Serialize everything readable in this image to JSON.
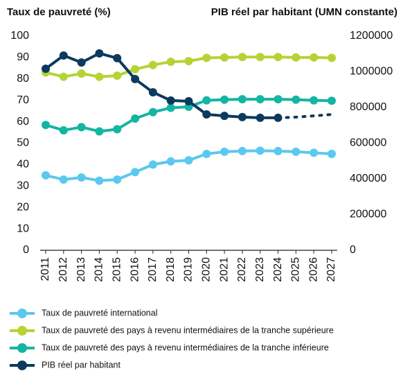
{
  "chart_data": {
    "type": "line",
    "y_label": "Taux de pauvreté (%)",
    "y2_label": "PIB réel par habitant (UMN constante)",
    "categories": [
      "2011",
      "2012",
      "2013",
      "2014",
      "2015",
      "2016",
      "2017",
      "2018",
      "2019",
      "2020",
      "2021",
      "2022",
      "2023",
      "2024",
      "2025",
      "2026",
      "2027"
    ],
    "ylim": [
      0,
      100
    ],
    "yticks": [
      0,
      10,
      20,
      30,
      40,
      50,
      60,
      70,
      80,
      90,
      100
    ],
    "y2lim": [
      0,
      1200000
    ],
    "y2ticks": [
      0,
      200000,
      400000,
      600000,
      800000,
      1000000,
      1200000
    ],
    "grid": false,
    "legend": "bottom",
    "series": [
      {
        "name": "Taux de pauvreté international",
        "color": "#5bc8ef",
        "values": [
          35,
          33,
          34,
          32.5,
          33,
          36.5,
          40,
          41.5,
          42,
          45,
          46,
          46.3,
          46.5,
          46.3,
          46,
          45.5,
          45
        ]
      },
      {
        "name": "Taux de pauvreté des pays à revenu intermédiaires de la tranche supérieure",
        "color": "#b5d334",
        "values": [
          83,
          81,
          82.5,
          81,
          81.5,
          84.5,
          86.5,
          88,
          88.3,
          89.8,
          90,
          90.2,
          90.2,
          90.2,
          90,
          90,
          89.8
        ]
      },
      {
        "name": "Taux de pauvreté des pays à revenu intermédiaires de la tranche inférieure",
        "color": "#14b5a2",
        "values": [
          58.5,
          56,
          57.5,
          55.5,
          56.5,
          61.5,
          64.5,
          66.5,
          67,
          70,
          70.3,
          70.5,
          70.5,
          70.5,
          70.3,
          70,
          69.8
        ]
      },
      {
        "name": "PIB réel par habitant",
        "color": "#0c3a5e",
        "axis": "y2",
        "dashed_from": "2024",
        "values": [
          1017000,
          1091000,
          1052000,
          1103000,
          1076000,
          959000,
          885000,
          839000,
          835000,
          761000,
          753000,
          746000,
          742000,
          742000,
          746000,
          753000,
          761000
        ]
      }
    ]
  }
}
